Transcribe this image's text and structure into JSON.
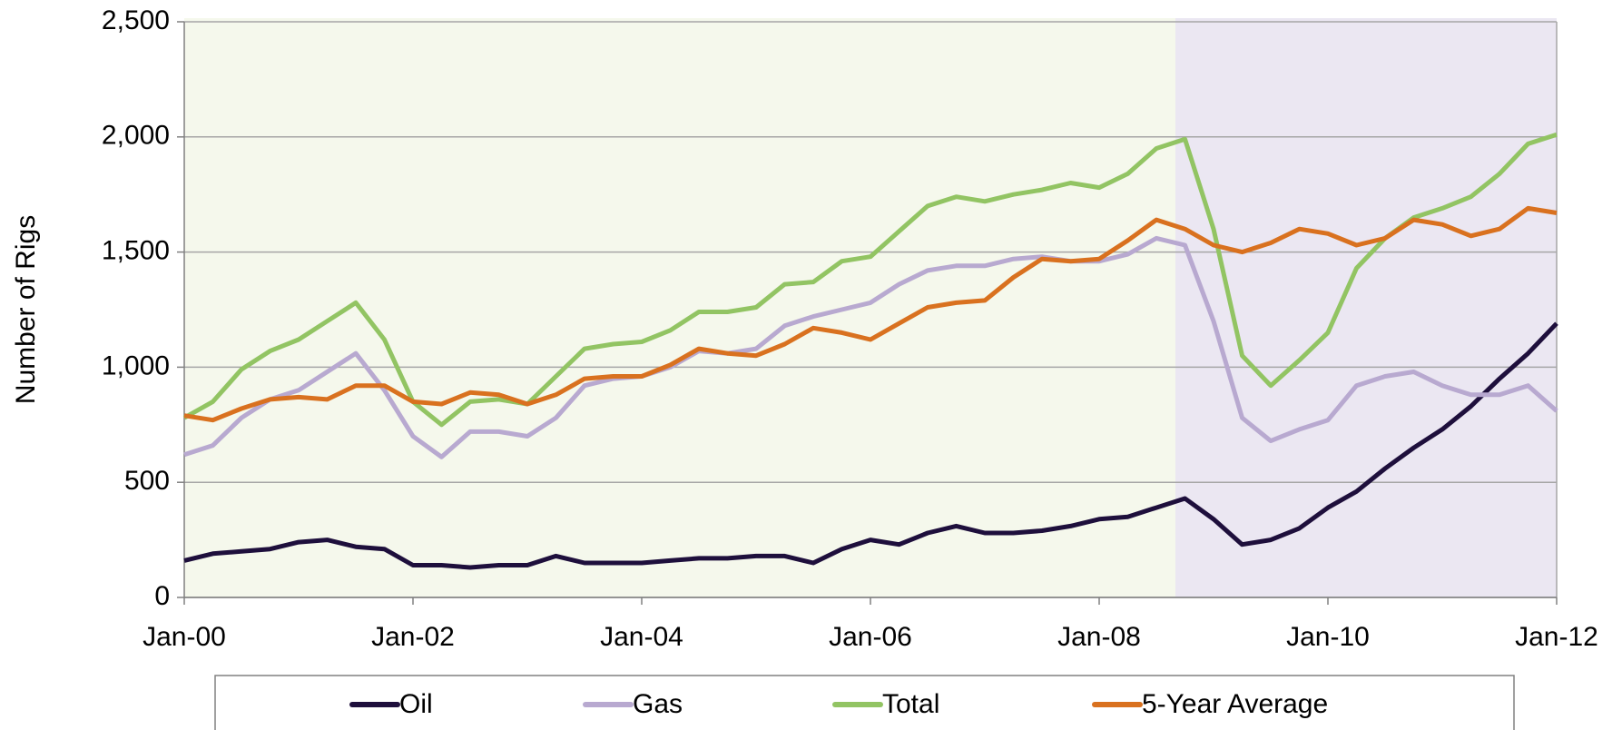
{
  "chart_data": {
    "type": "line",
    "y_label": "Number of Rigs",
    "x": [
      "2000-01",
      "2000-04",
      "2000-07",
      "2000-10",
      "2001-01",
      "2001-04",
      "2001-07",
      "2001-10",
      "2002-01",
      "2002-04",
      "2002-07",
      "2002-10",
      "2003-01",
      "2003-04",
      "2003-07",
      "2003-10",
      "2004-01",
      "2004-04",
      "2004-07",
      "2004-10",
      "2005-01",
      "2005-04",
      "2005-07",
      "2005-10",
      "2006-01",
      "2006-04",
      "2006-07",
      "2006-10",
      "2007-01",
      "2007-04",
      "2007-07",
      "2007-10",
      "2008-01",
      "2008-04",
      "2008-07",
      "2008-10",
      "2009-01",
      "2009-04",
      "2009-07",
      "2009-10",
      "2010-01",
      "2010-04",
      "2010-07",
      "2010-10",
      "2011-01",
      "2011-04",
      "2011-07",
      "2011-10",
      "2012-01"
    ],
    "series": [
      {
        "name": "Oil",
        "color": "#1e0f3c",
        "values": [
          160,
          190,
          200,
          210,
          240,
          250,
          220,
          210,
          140,
          140,
          130,
          140,
          140,
          180,
          150,
          150,
          150,
          160,
          170,
          170,
          180,
          180,
          150,
          210,
          250,
          230,
          280,
          310,
          280,
          280,
          290,
          310,
          340,
          350,
          390,
          430,
          340,
          230,
          250,
          300,
          390,
          460,
          560,
          650,
          730,
          830,
          950,
          1060,
          1190
        ]
      },
      {
        "name": "Gas",
        "color": "#b8a9d0",
        "values": [
          620,
          660,
          780,
          860,
          900,
          980,
          1060,
          900,
          700,
          610,
          720,
          720,
          700,
          780,
          920,
          950,
          960,
          1000,
          1070,
          1060,
          1080,
          1180,
          1220,
          1250,
          1280,
          1360,
          1420,
          1440,
          1440,
          1470,
          1480,
          1460,
          1460,
          1490,
          1560,
          1530,
          1200,
          780,
          680,
          730,
          770,
          920,
          960,
          980,
          920,
          880,
          880,
          920,
          810
        ]
      },
      {
        "name": "Total",
        "color": "#92c463",
        "values": [
          780,
          850,
          990,
          1070,
          1120,
          1200,
          1280,
          1120,
          850,
          750,
          850,
          860,
          840,
          960,
          1080,
          1100,
          1110,
          1160,
          1240,
          1240,
          1260,
          1360,
          1370,
          1460,
          1480,
          1590,
          1700,
          1740,
          1720,
          1750,
          1770,
          1800,
          1780,
          1840,
          1950,
          1990,
          1600,
          1050,
          920,
          1030,
          1150,
          1430,
          1560,
          1650,
          1690,
          1740,
          1840,
          1970,
          2010
        ]
      },
      {
        "name": "5-Year Average",
        "color": "#d9711f",
        "values": [
          790,
          770,
          820,
          860,
          870,
          860,
          920,
          920,
          850,
          840,
          890,
          880,
          840,
          880,
          950,
          960,
          960,
          1010,
          1080,
          1060,
          1050,
          1100,
          1170,
          1150,
          1120,
          1190,
          1260,
          1280,
          1290,
          1390,
          1470,
          1460,
          1470,
          1550,
          1640,
          1600,
          1530,
          1500,
          1540,
          1600,
          1580,
          1530,
          1560,
          1640,
          1620,
          1570,
          1600,
          1690,
          1670
        ]
      }
    ],
    "xlim": [
      "2000-01",
      "2012-01"
    ],
    "xticks": [
      {
        "value": "2000-01",
        "label": "Jan-00"
      },
      {
        "value": "2002-01",
        "label": "Jan-02"
      },
      {
        "value": "2004-01",
        "label": "Jan-04"
      },
      {
        "value": "2006-01",
        "label": "Jan-06"
      },
      {
        "value": "2008-01",
        "label": "Jan-08"
      },
      {
        "value": "2010-01",
        "label": "Jan-10"
      },
      {
        "value": "2012-01",
        "label": "Jan-12"
      }
    ],
    "ylim": [
      0,
      2500
    ],
    "yticks": [
      0,
      {
        "value": 500,
        "label": "500"
      },
      {
        "value": 1000,
        "label": "1,000"
      },
      {
        "value": 1500,
        "label": "1,500"
      },
      {
        "value": 2000,
        "label": "2,000"
      },
      {
        "value": 2500,
        "label": "2,500"
      }
    ],
    "shaded_regions": [
      {
        "start": "2000-01",
        "end": "2008-09",
        "color": "#f5f8ec"
      },
      {
        "start": "2008-09",
        "end": "2012-01",
        "color": "#ebe7f2"
      }
    ],
    "grid": true,
    "legend": "bottom"
  }
}
